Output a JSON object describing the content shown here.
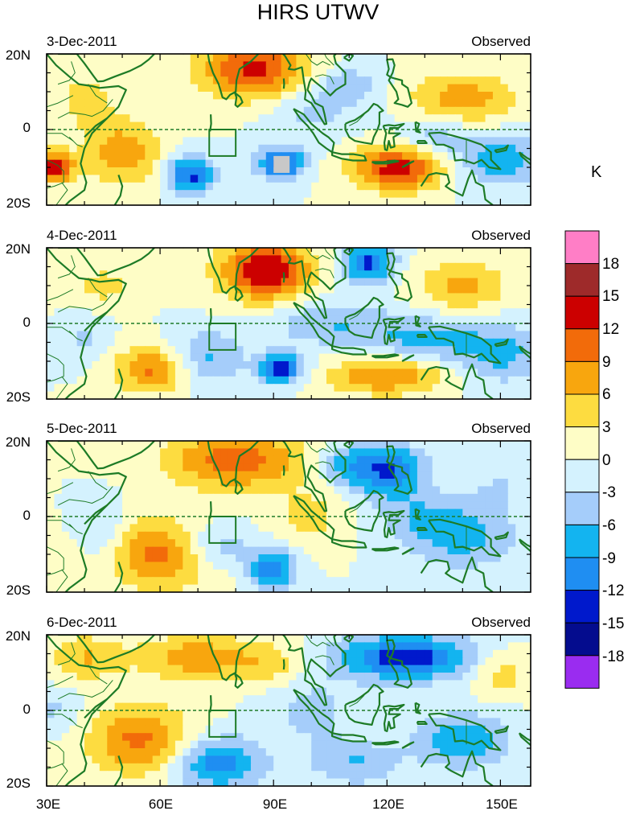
{
  "title": "HIRS UTWV",
  "unit": "K",
  "panels": [
    {
      "date": "3-Dec-2011",
      "label": "Observed"
    },
    {
      "date": "4-Dec-2011",
      "label": "Observed"
    },
    {
      "date": "5-Dec-2011",
      "label": "Observed"
    },
    {
      "date": "6-Dec-2011",
      "label": "Observed"
    }
  ],
  "lat_labels": [
    "20N",
    "0",
    "20S"
  ],
  "lon_labels": [
    "30E",
    "60E",
    "90E",
    "120E",
    "150E"
  ],
  "colorbar": {
    "labels": [
      "18",
      "15",
      "12",
      "9",
      "6",
      "3",
      "0",
      "-3",
      "-6",
      "-9",
      "-12",
      "-15",
      "-18"
    ],
    "colors": [
      "#ff7ec6",
      "#9e2a2a",
      "#cc0000",
      "#f26b0a",
      "#f8a60e",
      "#fddc40",
      "#fefdc6",
      "#d4f2fe",
      "#a5cdfa",
      "#13b4f0",
      "#1f8ef2",
      "#0019cc",
      "#040c8e",
      "#9a2cf0"
    ]
  },
  "colors": {
    "coast": "#1d7b26",
    "frame": "#000000",
    "equator": "#1d7b26",
    "missing": "#c8c8c8"
  }
}
